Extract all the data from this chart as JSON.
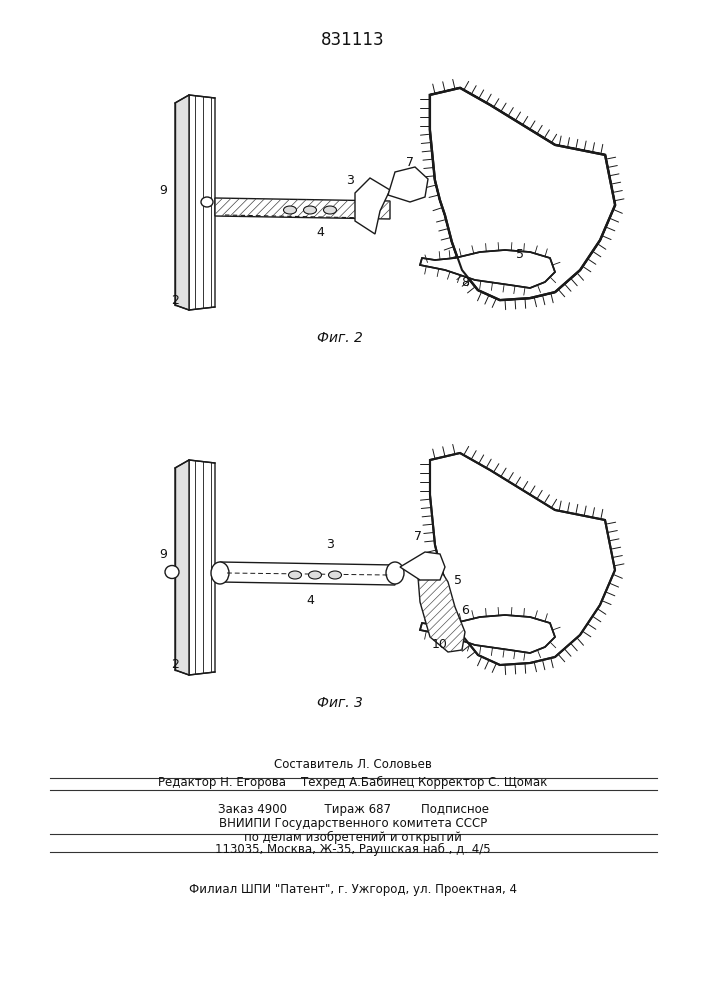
{
  "title": "831113",
  "bg_color": "#ffffff",
  "fig_label2": "Фиг. 2",
  "fig_label3": "Фиг. 3",
  "line_color": "#1a1a1a",
  "hatch_color": "#1a1a1a",
  "footer_block": {
    "line1": "Составитель Л. Соловьев",
    "line2": "Редактор Н. Егорова    Техред А.Бабинец Корректор С. Щомак",
    "line3": "Заказ 4900          Тираж 687        Подписное",
    "line4": "ВНИИПИ Государственного комитета СССР",
    "line5": "по делам изобретений и открытий",
    "line6": "113035, Москва, Ж-35, Раушская наб., д. 4/5",
    "line7": "Филиал ШПИ \"Патент\", г. Ужгород, ул. Проектная, 4"
  }
}
